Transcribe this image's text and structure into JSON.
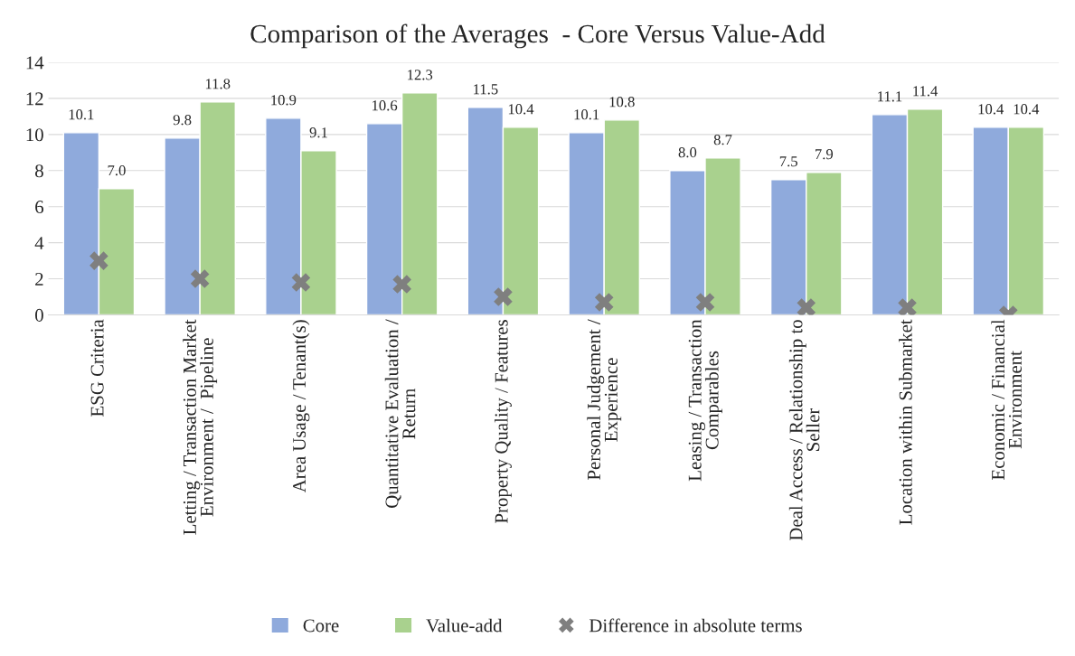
{
  "chart_data": {
    "type": "bar",
    "title": "Comparison of the Averages  - Core Versus Value-Add",
    "categories": [
      "ESG Criteria",
      "Letting / Transaction Market\nEnvironment /  Pipeline",
      "Area Usage / Tenant(s)",
      "Quantitative Evaluation /\nReturn",
      "Property Quality / Features",
      "Personal Judgement /\nExperience",
      "Leasing / Transaction\nComparables",
      "Deal Access / Relationship to\nSeller",
      "Location within Submarket",
      "Economic / Financial\nEnvironment"
    ],
    "series": [
      {
        "name": "Core",
        "color": "#8faadc",
        "values": [
          10.1,
          9.8,
          10.9,
          10.6,
          11.5,
          10.1,
          8.0,
          7.5,
          11.1,
          10.4
        ],
        "value_labels": [
          "10.1",
          "9.8",
          "10.9",
          "10.6",
          "11.5",
          "10.1",
          "8.0",
          "7.5",
          "11.1",
          "10.4"
        ]
      },
      {
        "name": "Value-add",
        "color": "#a9d18e",
        "values": [
          7.0,
          11.8,
          9.1,
          12.3,
          10.4,
          10.8,
          8.7,
          7.9,
          11.4,
          10.4
        ],
        "value_labels": [
          "7.0",
          "11.8",
          "9.1",
          "12.3",
          "10.4",
          "10.8",
          "8.7",
          "7.9",
          "11.4",
          "10.4"
        ]
      },
      {
        "name": "Difference in absolute terms",
        "type": "scatter",
        "marker": "cross",
        "color": "#7f7f7f",
        "values": [
          3.0,
          2.0,
          1.8,
          1.7,
          1.0,
          0.7,
          0.7,
          0.4,
          0.4,
          0.0
        ]
      }
    ],
    "ylim": [
      0,
      14
    ],
    "yticks": [
      0,
      2,
      4,
      6,
      8,
      10,
      12,
      14
    ],
    "grid": "y",
    "legend": "bottom"
  }
}
